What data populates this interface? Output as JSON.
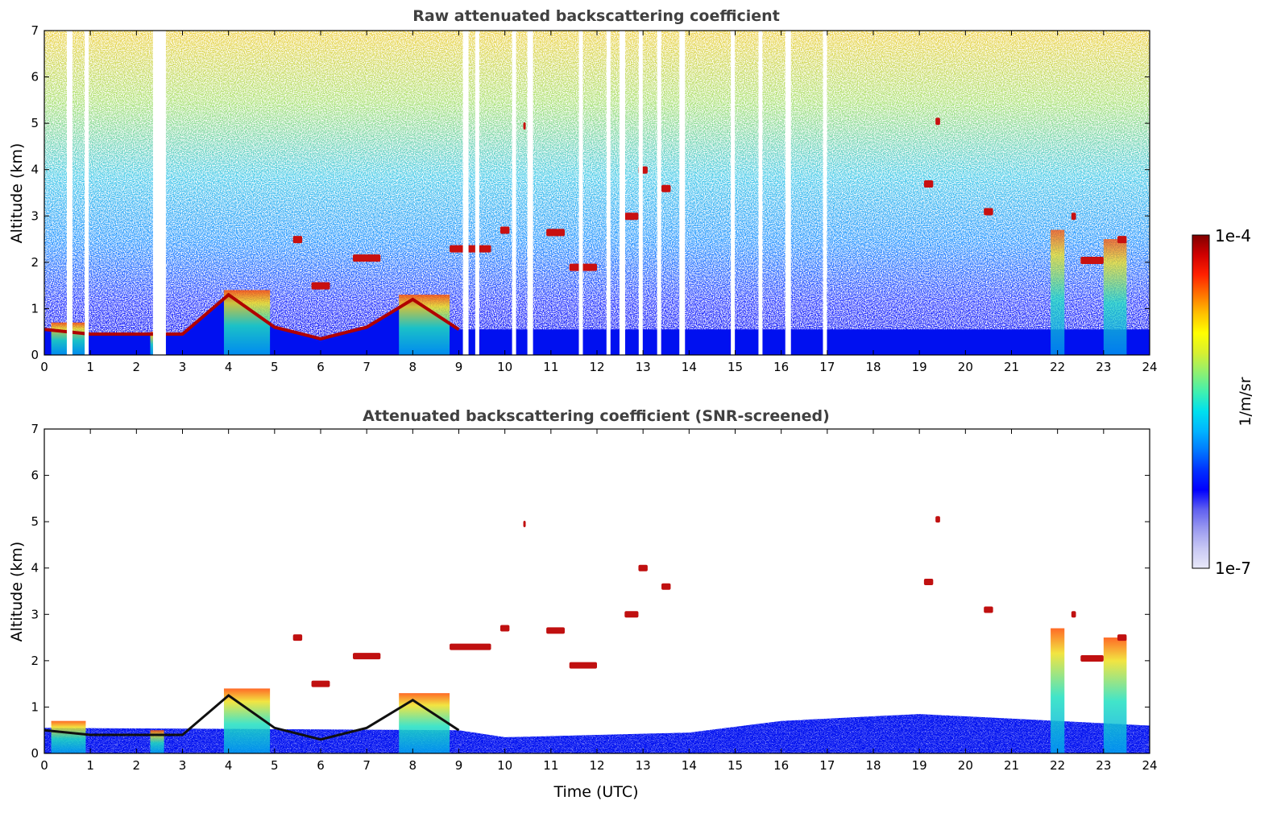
{
  "chart_data": [
    {
      "type": "heatmap",
      "title": "Raw attenuated backscattering coefficient",
      "xlabel": "",
      "ylabel": "Altitude (km)",
      "xlim": [
        0,
        24
      ],
      "ylim": [
        0,
        7
      ],
      "x_ticks": [
        "0",
        "1",
        "2",
        "3",
        "4",
        "5",
        "6",
        "7",
        "8",
        "9",
        "10",
        "11",
        "12",
        "13",
        "14",
        "15",
        "16",
        "17",
        "18",
        "19",
        "20",
        "21",
        "22",
        "23",
        "24"
      ],
      "y_ticks": [
        "0",
        "1",
        "2",
        "3",
        "4",
        "5",
        "6",
        "7"
      ],
      "boundary_layer_top_km": [
        [
          0,
          0.55
        ],
        [
          1,
          0.45
        ],
        [
          2,
          0.45
        ],
        [
          3,
          0.45
        ],
        [
          4,
          1.3
        ],
        [
          5,
          0.6
        ],
        [
          6,
          0.35
        ],
        [
          7,
          0.6
        ],
        [
          8,
          1.2
        ],
        [
          9,
          0.55
        ],
        [
          24,
          0.55
        ]
      ],
      "cloud_layers": [
        {
          "t_start": 5.4,
          "t_end": 5.6,
          "alt_km": 2.5
        },
        {
          "t_start": 5.8,
          "t_end": 6.2,
          "alt_km": 1.5
        },
        {
          "t_start": 6.7,
          "t_end": 7.3,
          "alt_km": 2.1
        },
        {
          "t_start": 8.8,
          "t_end": 9.7,
          "alt_km": 2.3
        },
        {
          "t_start": 9.9,
          "t_end": 10.1,
          "alt_km": 2.7
        },
        {
          "t_start": 10.4,
          "t_end": 10.45,
          "alt_km": 4.95
        },
        {
          "t_start": 10.9,
          "t_end": 11.3,
          "alt_km": 2.65
        },
        {
          "t_start": 11.4,
          "t_end": 12.0,
          "alt_km": 1.9
        },
        {
          "t_start": 12.6,
          "t_end": 12.9,
          "alt_km": 3.0
        },
        {
          "t_start": 12.9,
          "t_end": 13.1,
          "alt_km": 4.0
        },
        {
          "t_start": 13.4,
          "t_end": 13.6,
          "alt_km": 3.6
        },
        {
          "t_start": 19.1,
          "t_end": 19.3,
          "alt_km": 3.7
        },
        {
          "t_start": 19.35,
          "t_end": 19.45,
          "alt_km": 5.05
        },
        {
          "t_start": 20.4,
          "t_end": 20.6,
          "alt_km": 3.1
        },
        {
          "t_start": 22.3,
          "t_end": 22.4,
          "alt_km": 3.0
        },
        {
          "t_start": 22.5,
          "t_end": 23.0,
          "alt_km": 2.05
        },
        {
          "t_start": 23.3,
          "t_end": 23.5,
          "alt_km": 2.5
        }
      ]
    },
    {
      "type": "heatmap",
      "title": "Attenuated backscattering coefficient (SNR-screened)",
      "xlabel": "Time (UTC)",
      "ylabel": "Altitude (km)",
      "xlim": [
        0,
        24
      ],
      "ylim": [
        0,
        7
      ],
      "x_ticks": [
        "0",
        "1",
        "2",
        "3",
        "4",
        "5",
        "6",
        "7",
        "8",
        "9",
        "10",
        "11",
        "12",
        "13",
        "14",
        "15",
        "16",
        "17",
        "18",
        "19",
        "20",
        "21",
        "22",
        "23",
        "24"
      ],
      "y_ticks": [
        "0",
        "1",
        "2",
        "3",
        "4",
        "5",
        "6",
        "7"
      ],
      "screened_boundary_layer_top_km": [
        [
          0,
          0.55
        ],
        [
          9,
          0.5
        ],
        [
          10,
          0.35
        ],
        [
          14,
          0.45
        ],
        [
          16,
          0.7
        ],
        [
          18,
          0.8
        ],
        [
          19,
          0.85
        ],
        [
          21,
          0.75
        ],
        [
          24,
          0.6
        ]
      ]
    }
  ],
  "colorbar": {
    "label": "1/m/sr",
    "max_label": "1e-4",
    "min_label": "1e-7",
    "colors": [
      "#e8e8f8",
      "#c8c8f4",
      "#9a9af0",
      "#6060f0",
      "#0000ff",
      "#0030ff",
      "#0078ff",
      "#00b4ff",
      "#00e0ee",
      "#40f0b0",
      "#90f070",
      "#d8f030",
      "#ffff00",
      "#ffc000",
      "#ff7000",
      "#ff2000",
      "#d00000",
      "#800000"
    ]
  }
}
